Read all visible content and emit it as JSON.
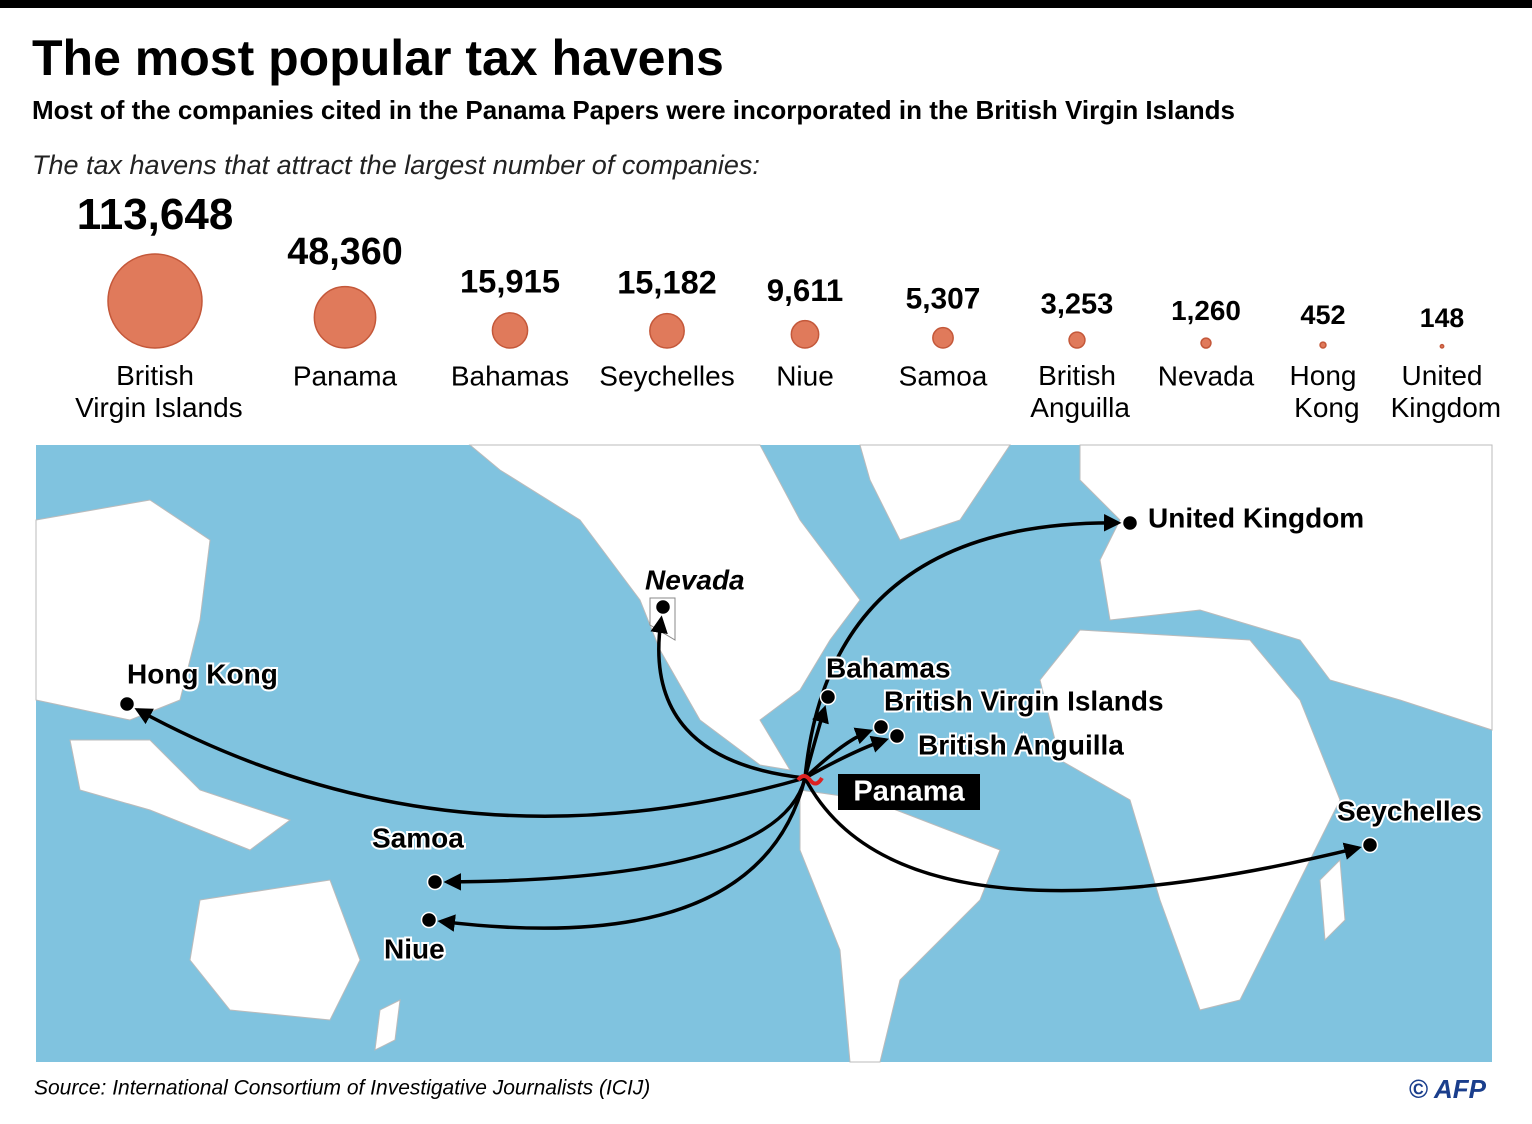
{
  "chart_data": {
    "type": "bubble",
    "title": "The most popular tax havens",
    "subtitle": "Most of the companies cited in the Panama Papers were incorporated in the British Virgin Islands",
    "label": "The tax havens that attract the largest number of companies:",
    "categories": [
      "British Virgin Islands",
      "Panama",
      "Bahamas",
      "Seychelles",
      "Niue",
      "Samoa",
      "British Anguilla",
      "Nevada",
      "Hong Kong",
      "United Kingdom"
    ],
    "values": [
      113648,
      48360,
      15915,
      15182,
      9611,
      5307,
      3253,
      1260,
      452,
      148
    ],
    "value_labels": [
      "113,648",
      "48,360",
      "15,915",
      "15,182",
      "9,611",
      "5,307",
      "3,253",
      "1,260",
      "452",
      "148"
    ],
    "color": "#e07a5b"
  },
  "map": {
    "origin": "Panama",
    "places": [
      "United Kingdom",
      "Nevada",
      "Hong Kong",
      "Bahamas",
      "British Virgin Islands",
      "British Anguilla",
      "Seychelles",
      "Samoa",
      "Niue"
    ]
  },
  "source": "Source: International Consortium of Investigative Journalists (ICIJ)",
  "credit": "© AFP"
}
